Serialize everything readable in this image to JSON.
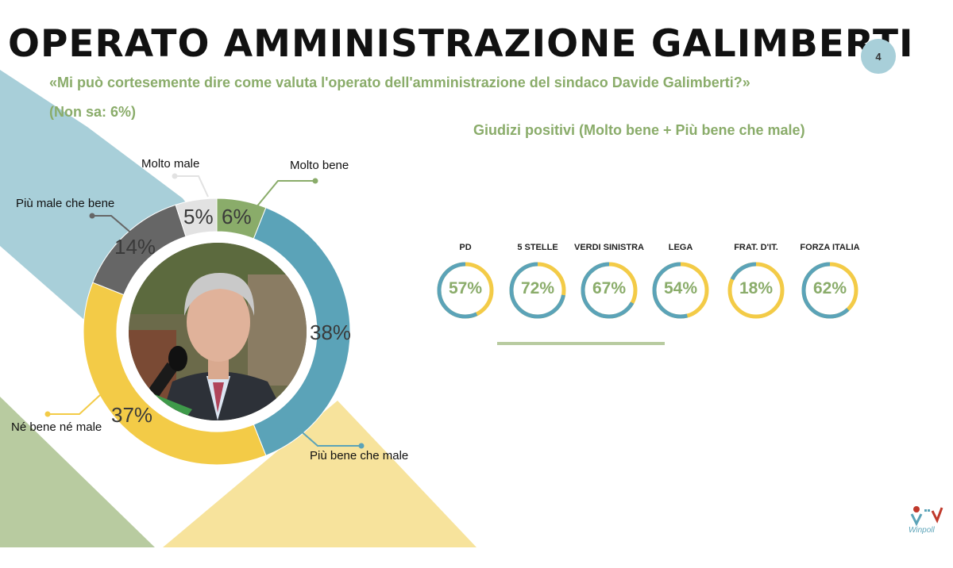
{
  "header": {
    "title": "OPERATO AMMINISTRAZIONE GALIMBERTI",
    "page_number": "4",
    "question": "«Mi può cortesemente dire come valuta l'operato dell'amministrazione del sindaco Davide Galimberti?»",
    "non_sa": "(Non sa:  6%)"
  },
  "colors": {
    "molto_bene": "#8aac6a",
    "piu_bene_che_male": "#5ba3b8",
    "ne_bene_ne_male": "#f3cb47",
    "piu_male_che_bene": "#666666",
    "molto_male": "#e2e2e2",
    "accent_text": "#8aac6a"
  },
  "chart_data": [
    {
      "type": "pie",
      "variant": "donut",
      "slices": [
        {
          "label": "Molto bene",
          "value": 6,
          "display": "6%",
          "color": "#8aac6a"
        },
        {
          "label": "Più bene che male",
          "value": 38,
          "display": "38%",
          "color": "#5ba3b8"
        },
        {
          "label": "Né bene né male",
          "value": 37,
          "display": "37%",
          "color": "#f3cb47"
        },
        {
          "label": "Più male che bene",
          "value": 14,
          "display": "14%",
          "color": "#666666"
        },
        {
          "label": "Molto male",
          "value": 5,
          "display": "5%",
          "color": "#e2e2e2"
        }
      ]
    },
    {
      "type": "pie",
      "variant": "ring-gauges",
      "title": "Giudizi positivi (Molto bene + Più bene che male)",
      "items": [
        {
          "party": "PD",
          "value": 57,
          "display": "57%"
        },
        {
          "party": "5 STELLE",
          "value": 72,
          "display": "72%"
        },
        {
          "party": "VERDI SINISTRA",
          "value": 67,
          "display": "67%"
        },
        {
          "party": "LEGA",
          "value": 54,
          "display": "54%"
        },
        {
          "party": "FRAT. D'IT.",
          "value": 18,
          "display": "18%"
        },
        {
          "party": "FORZA ITALIA",
          "value": 62,
          "display": "62%"
        }
      ]
    }
  ],
  "logo_text": "Winpoll"
}
